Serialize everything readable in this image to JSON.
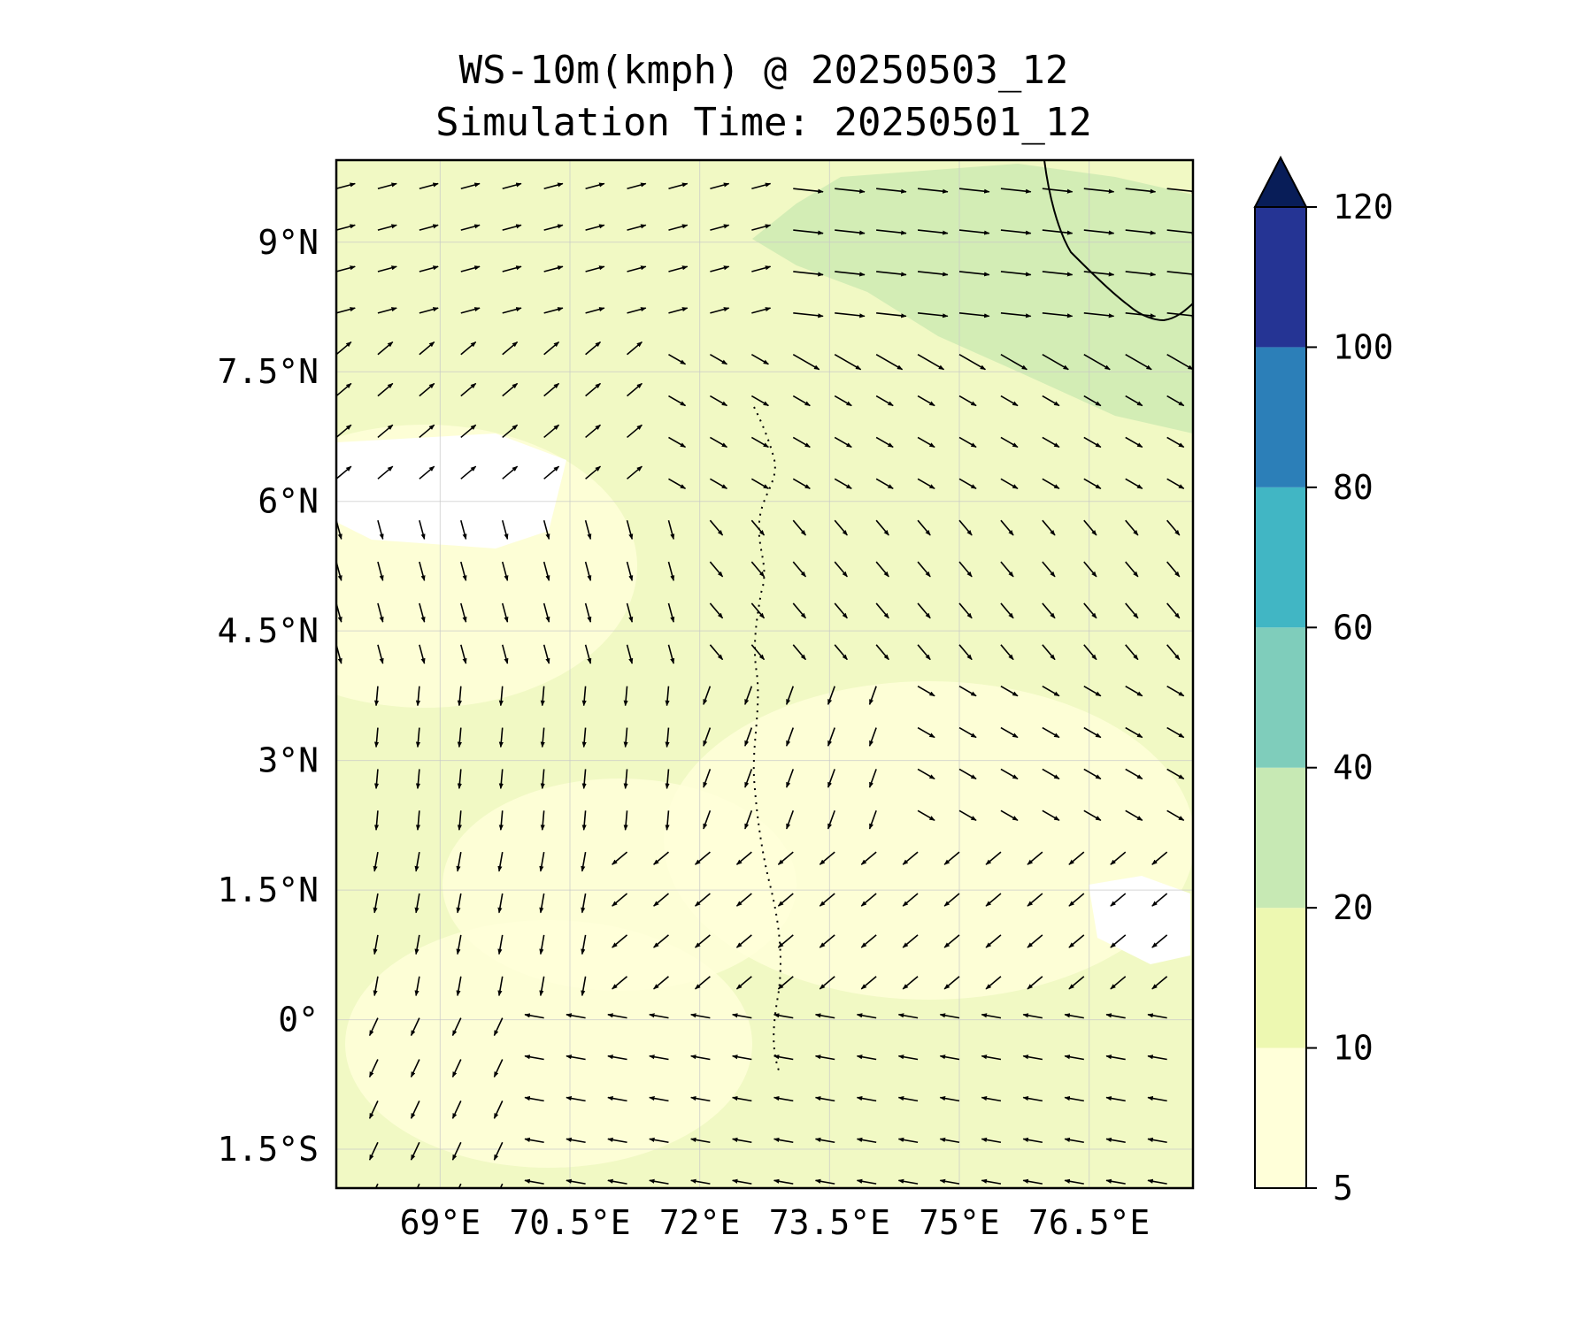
{
  "map": {
    "title_line1": "WS-10m(kmph) @ 20250503_12",
    "title_line2": "Simulation Time: 20250501_12",
    "lon_range": [
      67.8,
      77.7
    ],
    "lat_range": [
      -1.95,
      9.95
    ],
    "lon_ticks": [
      {
        "value": 69,
        "label": "69°E"
      },
      {
        "value": 70.5,
        "label": "70.5°E"
      },
      {
        "value": 72,
        "label": "72°E"
      },
      {
        "value": 73.5,
        "label": "73.5°E"
      },
      {
        "value": 75,
        "label": "75°E"
      },
      {
        "value": 76.5,
        "label": "76.5°E"
      }
    ],
    "lat_ticks": [
      {
        "value": 9,
        "label": "9°N"
      },
      {
        "value": 7.5,
        "label": "7.5°N"
      },
      {
        "value": 6,
        "label": "6°N"
      },
      {
        "value": 4.5,
        "label": "4.5°N"
      },
      {
        "value": 3,
        "label": "3°N"
      },
      {
        "value": 1.5,
        "label": "1.5°N"
      },
      {
        "value": 0,
        "label": "0°"
      },
      {
        "value": -1.5,
        "label": "1.5°S"
      }
    ],
    "field_fill_color": "#f1f9c4",
    "calm_region_color": "#ffffff",
    "high_wind_region_color": "#cfebb4"
  },
  "colorbar": {
    "levels": [
      {
        "value": 5,
        "label": "5"
      },
      {
        "value": 10,
        "label": "10"
      },
      {
        "value": 20,
        "label": "20"
      },
      {
        "value": 40,
        "label": "40"
      },
      {
        "value": 60,
        "label": "60"
      },
      {
        "value": 80,
        "label": "80"
      },
      {
        "value": 100,
        "label": "100"
      },
      {
        "value": 120,
        "label": "120"
      }
    ],
    "colors": [
      "#ffffd9",
      "#edf8b1",
      "#c7e9b4",
      "#7fcdbb",
      "#41b6c4",
      "#2c7fb8",
      "#253494"
    ],
    "extend_color": "#081d58",
    "extend": "max"
  }
}
